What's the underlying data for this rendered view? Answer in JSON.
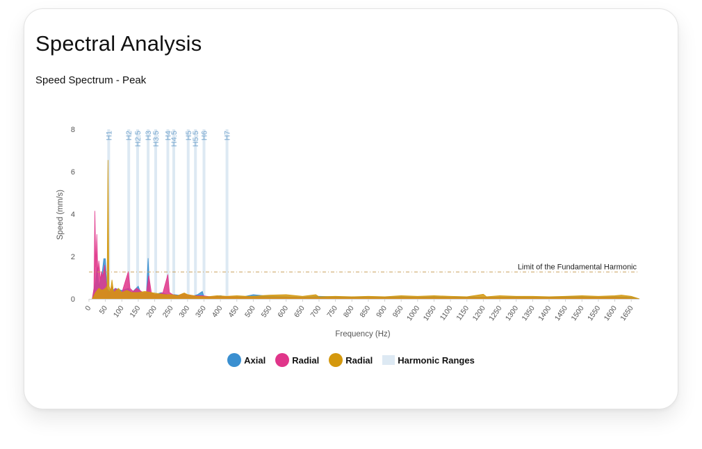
{
  "card": {
    "title": "Spectral Analysis",
    "subtitle": "Speed Spectrum - Peak"
  },
  "colors": {
    "axial": "#3a8fd0",
    "radial_pink": "#e0358a",
    "radial_gold": "#d4980d",
    "harmonic": "#dde9f3",
    "harmonic_label": "#7aa8cf",
    "limit_line": "#c9a05a",
    "axis_text": "#555555"
  },
  "chart_data": {
    "type": "area",
    "title": "",
    "xlabel": "Frequency (Hz)",
    "ylabel": "Speed (mm/s)",
    "xlim": [
      0,
      1675
    ],
    "ylim": [
      0,
      8
    ],
    "x_ticks": [
      0,
      50,
      100,
      150,
      200,
      250,
      300,
      350,
      400,
      450,
      500,
      550,
      600,
      650,
      700,
      750,
      800,
      850,
      900,
      950,
      1000,
      1050,
      1100,
      1150,
      1200,
      1250,
      1300,
      1350,
      1400,
      1450,
      1500,
      1550,
      1600,
      1650
    ],
    "y_ticks": [
      0,
      2,
      4,
      6,
      8
    ],
    "grid": false,
    "legend_position": "bottom",
    "limit_line": {
      "label": "Limit of the Fundamental Harmonic",
      "value": 1.27
    },
    "harmonics": [
      {
        "label": "H1",
        "x": 60
      },
      {
        "label": "H2",
        "x": 121
      },
      {
        "label": "H2.5",
        "x": 148
      },
      {
        "label": "H3",
        "x": 180
      },
      {
        "label": "H3.5",
        "x": 203
      },
      {
        "label": "H4",
        "x": 240
      },
      {
        "label": "H4.5",
        "x": 258
      },
      {
        "label": "H5",
        "x": 302
      },
      {
        "label": "H5.5",
        "x": 324
      },
      {
        "label": "H6",
        "x": 350
      },
      {
        "label": "H7",
        "x": 420
      }
    ],
    "series": [
      {
        "name": "Axial",
        "color_key": "axial",
        "points": [
          [
            10,
            0
          ],
          [
            20,
            0.8
          ],
          [
            25,
            1.5
          ],
          [
            30,
            0.6
          ],
          [
            40,
            1.2
          ],
          [
            45,
            1.9
          ],
          [
            50,
            1.9
          ],
          [
            55,
            0.5
          ],
          [
            65,
            0.3
          ],
          [
            80,
            0.5
          ],
          [
            100,
            0.4
          ],
          [
            120,
            0.5
          ],
          [
            130,
            0.3
          ],
          [
            150,
            0.6
          ],
          [
            160,
            0.2
          ],
          [
            175,
            0.3
          ],
          [
            180,
            1.92
          ],
          [
            185,
            0.3
          ],
          [
            200,
            0.2
          ],
          [
            220,
            0.3
          ],
          [
            240,
            0.2
          ],
          [
            260,
            0.2
          ],
          [
            290,
            0.15
          ],
          [
            310,
            0.1
          ],
          [
            330,
            0.2
          ],
          [
            345,
            0.35
          ],
          [
            350,
            0.1
          ],
          [
            380,
            0.1
          ],
          [
            400,
            0.15
          ],
          [
            420,
            0.1
          ],
          [
            470,
            0.1
          ],
          [
            500,
            0.2
          ],
          [
            550,
            0.12
          ],
          [
            600,
            0.1
          ],
          [
            650,
            0.08
          ],
          [
            700,
            0.12
          ],
          [
            750,
            0.1
          ],
          [
            800,
            0.1
          ],
          [
            850,
            0.08
          ],
          [
            900,
            0.08
          ],
          [
            950,
            0.1
          ],
          [
            1000,
            0.08
          ],
          [
            1050,
            0.1
          ],
          [
            1100,
            0.08
          ],
          [
            1150,
            0.1
          ],
          [
            1200,
            0.08
          ],
          [
            1250,
            0.08
          ],
          [
            1300,
            0.1
          ],
          [
            1350,
            0.08
          ],
          [
            1400,
            0.08
          ],
          [
            1450,
            0.1
          ],
          [
            1500,
            0.1
          ],
          [
            1550,
            0.08
          ],
          [
            1600,
            0.1
          ],
          [
            1650,
            0.08
          ],
          [
            1675,
            0
          ]
        ]
      },
      {
        "name": "Radial",
        "color_key": "radial_pink",
        "points": [
          [
            10,
            0
          ],
          [
            15,
            0.5
          ],
          [
            18,
            4.15
          ],
          [
            21,
            1.5
          ],
          [
            24,
            3.05
          ],
          [
            27,
            1.2
          ],
          [
            30,
            1.8
          ],
          [
            35,
            0.9
          ],
          [
            38,
            1.3
          ],
          [
            42,
            1.05
          ],
          [
            45,
            1.35
          ],
          [
            48,
            1.6
          ],
          [
            52,
            0.8
          ],
          [
            56,
            0.4
          ],
          [
            62,
            0.3
          ],
          [
            70,
            0.6
          ],
          [
            75,
            0.3
          ],
          [
            80,
            0.5
          ],
          [
            90,
            0.35
          ],
          [
            100,
            0.3
          ],
          [
            110,
            0.8
          ],
          [
            120,
            1.3
          ],
          [
            125,
            0.5
          ],
          [
            135,
            0.35
          ],
          [
            145,
            0.5
          ],
          [
            155,
            0.4
          ],
          [
            165,
            0.3
          ],
          [
            175,
            0.3
          ],
          [
            182,
            1.1
          ],
          [
            190,
            0.3
          ],
          [
            200,
            0.2
          ],
          [
            210,
            0.2
          ],
          [
            225,
            0.3
          ],
          [
            240,
            1.15
          ],
          [
            245,
            0.3
          ],
          [
            255,
            0.2
          ],
          [
            270,
            0.15
          ],
          [
            285,
            0.25
          ],
          [
            300,
            0.2
          ],
          [
            320,
            0.15
          ],
          [
            345,
            0.15
          ],
          [
            370,
            0.1
          ],
          [
            400,
            0.1
          ],
          [
            430,
            0.1
          ],
          [
            460,
            0.08
          ],
          [
            500,
            0.08
          ],
          [
            550,
            0.06
          ],
          [
            600,
            0.06
          ],
          [
            700,
            0.05
          ],
          [
            800,
            0.05
          ],
          [
            900,
            0.05
          ],
          [
            1000,
            0.05
          ],
          [
            1100,
            0.05
          ],
          [
            1200,
            0.05
          ],
          [
            1300,
            0.05
          ],
          [
            1400,
            0.05
          ],
          [
            1500,
            0.05
          ],
          [
            1600,
            0.06
          ],
          [
            1675,
            0
          ]
        ]
      },
      {
        "name": "Radial",
        "color_key": "radial_gold",
        "points": [
          [
            10,
            0
          ],
          [
            20,
            0.3
          ],
          [
            30,
            0.5
          ],
          [
            40,
            0.4
          ],
          [
            50,
            0.5
          ],
          [
            55,
            0.6
          ],
          [
            58,
            6.55
          ],
          [
            61,
            0.6
          ],
          [
            66,
            0.4
          ],
          [
            70,
            0.9
          ],
          [
            75,
            0.3
          ],
          [
            90,
            0.5
          ],
          [
            100,
            0.3
          ],
          [
            115,
            0.4
          ],
          [
            130,
            0.3
          ],
          [
            150,
            0.3
          ],
          [
            170,
            0.35
          ],
          [
            190,
            0.3
          ],
          [
            210,
            0.25
          ],
          [
            230,
            0.2
          ],
          [
            250,
            0.2
          ],
          [
            270,
            0.15
          ],
          [
            290,
            0.28
          ],
          [
            300,
            0.2
          ],
          [
            330,
            0.12
          ],
          [
            360,
            0.1
          ],
          [
            390,
            0.15
          ],
          [
            420,
            0.12
          ],
          [
            450,
            0.15
          ],
          [
            480,
            0.12
          ],
          [
            500,
            0.12
          ],
          [
            550,
            0.18
          ],
          [
            600,
            0.2
          ],
          [
            650,
            0.12
          ],
          [
            690,
            0.2
          ],
          [
            700,
            0.1
          ],
          [
            750,
            0.12
          ],
          [
            800,
            0.1
          ],
          [
            850,
            0.12
          ],
          [
            900,
            0.1
          ],
          [
            950,
            0.15
          ],
          [
            1000,
            0.12
          ],
          [
            1050,
            0.15
          ],
          [
            1100,
            0.12
          ],
          [
            1150,
            0.1
          ],
          [
            1200,
            0.22
          ],
          [
            1210,
            0.1
          ],
          [
            1250,
            0.15
          ],
          [
            1300,
            0.12
          ],
          [
            1350,
            0.12
          ],
          [
            1400,
            0.1
          ],
          [
            1450,
            0.12
          ],
          [
            1500,
            0.15
          ],
          [
            1550,
            0.12
          ],
          [
            1600,
            0.15
          ],
          [
            1620,
            0.18
          ],
          [
            1650,
            0.12
          ],
          [
            1675,
            0
          ]
        ]
      }
    ],
    "legend": [
      {
        "label": "Axial",
        "color_key": "axial",
        "shape": "circle"
      },
      {
        "label": "Radial",
        "color_key": "radial_pink",
        "shape": "circle"
      },
      {
        "label": "Radial",
        "color_key": "radial_gold",
        "shape": "circle"
      },
      {
        "label": "Harmonic Ranges",
        "color_key": "harmonic",
        "shape": "rect"
      }
    ]
  }
}
